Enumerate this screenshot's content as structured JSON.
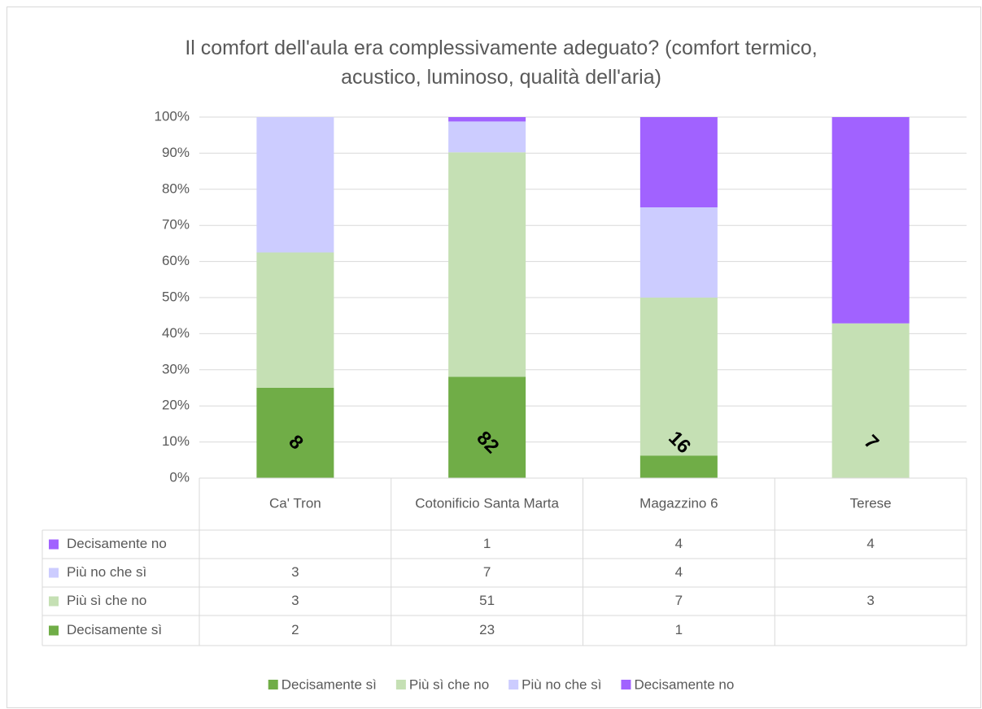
{
  "chart_data": {
    "type": "bar",
    "stacked": "percent",
    "title": "Il comfort dell'aula era complessivamente adeguato? (comfort termico, acustico, luminoso, qualità dell'aria)",
    "categories": [
      "Ca' Tron",
      "Cotonificio Santa Marta",
      "Magazzino 6",
      "Terese"
    ],
    "series": [
      {
        "name": "Decisamente sì",
        "color": "#70ad47",
        "values": [
          2,
          23,
          1,
          null
        ]
      },
      {
        "name": "Più sì che no",
        "color": "#c5e0b4",
        "values": [
          3,
          51,
          7,
          3
        ]
      },
      {
        "name": "Più no che sì",
        "color": "#ccccff",
        "values": [
          3,
          7,
          4,
          null
        ]
      },
      {
        "name": "Decisamente no",
        "color": "#a162ff",
        "values": [
          null,
          1,
          4,
          4
        ]
      }
    ],
    "totals": [
      8,
      82,
      16,
      7
    ],
    "ylim": [
      0,
      100
    ],
    "yticks": [
      {
        "value": 0,
        "label": "0%"
      },
      {
        "value": 10,
        "label": "10%"
      },
      {
        "value": 20,
        "label": "20%"
      },
      {
        "value": 30,
        "label": "30%"
      },
      {
        "value": 40,
        "label": "40%"
      },
      {
        "value": 50,
        "label": "50%"
      },
      {
        "value": 60,
        "label": "60%"
      },
      {
        "value": 70,
        "label": "70%"
      },
      {
        "value": 80,
        "label": "80%"
      },
      {
        "value": 90,
        "label": "90%"
      },
      {
        "value": 100,
        "label": "100%"
      }
    ],
    "grid": true,
    "legend": "bottom",
    "data_table": true
  }
}
